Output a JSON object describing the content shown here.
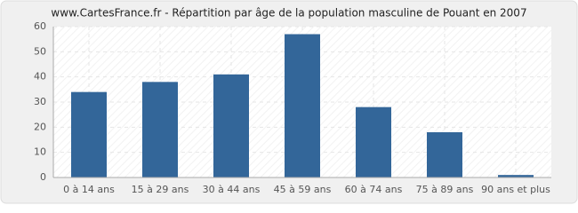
{
  "chart_data": {
    "type": "bar",
    "title": "www.CartesFrance.fr - Répartition par âge de la population masculine de Pouant en 2007",
    "categories": [
      "0 à 14 ans",
      "15 à 29 ans",
      "30 à 44 ans",
      "45 à 59 ans",
      "60 à 74 ans",
      "75 à 89 ans",
      "90 ans et plus"
    ],
    "values": [
      34,
      38,
      41,
      57,
      28,
      18,
      1
    ],
    "color": "#336699",
    "ylim": [
      0,
      60
    ],
    "yticks": [
      0,
      10,
      20,
      30,
      40,
      50,
      60
    ],
    "grid": true
  }
}
